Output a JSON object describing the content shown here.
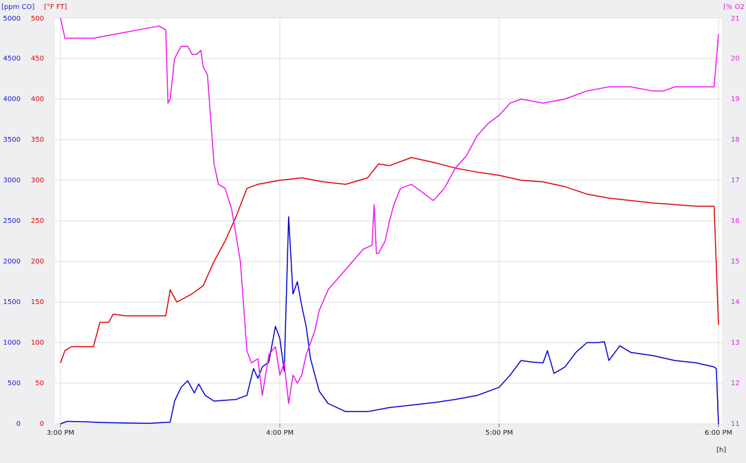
{
  "chart_data": {
    "type": "line",
    "x_unit_label": "[h]",
    "x_ticks": [
      "3:00 PM",
      "4:00 PM",
      "5:00 PM",
      "6:00 PM"
    ],
    "x_range_hours": [
      15,
      18
    ],
    "grid": true,
    "axes": {
      "co": {
        "label": "[ppm CO]",
        "color": "#1a1ad0",
        "side": "left-outer",
        "range": [
          0,
          5000
        ],
        "ticks": [
          "0",
          "500",
          "1000",
          "1500",
          "2000",
          "2500",
          "3000",
          "3500",
          "4000",
          "4500",
          "5000"
        ]
      },
      "temp": {
        "label": "[°F FT]",
        "color": "#dd0000",
        "side": "left-inner",
        "range": [
          0,
          500
        ],
        "ticks": [
          "0",
          "50",
          "100",
          "150",
          "200",
          "250",
          "300",
          "350",
          "400",
          "450",
          "500"
        ]
      },
      "o2": {
        "label": "[% O2",
        "color": "#e020e0",
        "side": "right",
        "range": [
          11,
          21
        ],
        "ticks": [
          "11",
          "12",
          "13",
          "14",
          "15",
          "16",
          "17",
          "18",
          "19",
          "20",
          "21"
        ]
      }
    },
    "series": [
      {
        "axis": "co",
        "color": "#0000cc",
        "x_hours": [
          15.0,
          15.03,
          15.1,
          15.2,
          15.4,
          15.5,
          15.52,
          15.55,
          15.58,
          15.61,
          15.63,
          15.66,
          15.7,
          15.8,
          15.85,
          15.88,
          15.9,
          15.92,
          15.95,
          15.98,
          16.0,
          16.02,
          16.04,
          16.06,
          16.08,
          16.1,
          16.12,
          16.14,
          16.16,
          16.18,
          16.22,
          16.3,
          16.4,
          16.5,
          16.6,
          16.7,
          16.8,
          16.9,
          17.0,
          17.05,
          17.1,
          17.15,
          17.2,
          17.22,
          17.25,
          17.3,
          17.35,
          17.4,
          17.45,
          17.48,
          17.5,
          17.55,
          17.6,
          17.7,
          17.8,
          17.9,
          17.98,
          17.99,
          18.0
        ],
        "y": [
          0,
          30,
          25,
          15,
          5,
          20,
          280,
          450,
          530,
          380,
          490,
          350,
          280,
          300,
          350,
          680,
          560,
          700,
          760,
          1200,
          1050,
          650,
          2550,
          1600,
          1750,
          1450,
          1200,
          800,
          600,
          400,
          250,
          150,
          150,
          200,
          230,
          260,
          300,
          350,
          450,
          600,
          780,
          760,
          750,
          900,
          620,
          700,
          880,
          1000,
          1000,
          1010,
          780,
          960,
          880,
          840,
          780,
          750,
          700,
          680,
          0
        ]
      },
      {
        "axis": "temp",
        "color": "#dd0000",
        "x_hours": [
          15.0,
          15.02,
          15.05,
          15.15,
          15.18,
          15.22,
          15.24,
          15.3,
          15.4,
          15.48,
          15.5,
          15.53,
          15.6,
          15.65,
          15.7,
          15.75,
          15.8,
          15.85,
          15.9,
          16.0,
          16.1,
          16.2,
          16.3,
          16.4,
          16.45,
          16.5,
          16.6,
          16.7,
          16.8,
          16.9,
          17.0,
          17.1,
          17.2,
          17.3,
          17.4,
          17.5,
          17.6,
          17.7,
          17.8,
          17.9,
          17.98,
          18.0
        ],
        "y": [
          75,
          90,
          95,
          95,
          125,
          125,
          135,
          133,
          133,
          133,
          165,
          150,
          160,
          170,
          200,
          225,
          255,
          290,
          295,
          300,
          303,
          298,
          295,
          303,
          320,
          318,
          328,
          322,
          315,
          310,
          306,
          300,
          298,
          292,
          283,
          278,
          275,
          272,
          270,
          268,
          268,
          122
        ]
      },
      {
        "axis": "o2",
        "color": "#ee11ee",
        "x_hours": [
          15.0,
          15.02,
          15.15,
          15.25,
          15.35,
          15.45,
          15.48,
          15.49,
          15.5,
          15.52,
          15.55,
          15.58,
          15.6,
          15.62,
          15.64,
          15.65,
          15.67,
          15.7,
          15.72,
          15.75,
          15.78,
          15.82,
          15.85,
          15.87,
          15.9,
          15.92,
          15.95,
          15.98,
          16.0,
          16.02,
          16.04,
          16.06,
          16.08,
          16.1,
          16.12,
          16.14,
          16.16,
          16.18,
          16.22,
          16.3,
          16.38,
          16.42,
          16.43,
          16.44,
          16.45,
          16.48,
          16.5,
          16.52,
          16.55,
          16.6,
          16.65,
          16.7,
          16.75,
          16.8,
          16.85,
          16.9,
          16.95,
          17.0,
          17.05,
          17.1,
          17.2,
          17.3,
          17.4,
          17.5,
          17.6,
          17.7,
          17.75,
          17.8,
          17.9,
          17.97,
          17.98,
          18.0
        ],
        "y": [
          21.0,
          20.5,
          20.5,
          20.6,
          20.7,
          20.8,
          20.7,
          18.9,
          19.0,
          20.0,
          20.3,
          20.3,
          20.1,
          20.1,
          20.2,
          19.8,
          19.6,
          17.4,
          16.9,
          16.8,
          16.3,
          15.0,
          12.8,
          12.5,
          12.6,
          11.7,
          12.7,
          12.9,
          12.2,
          12.5,
          11.5,
          12.2,
          12.0,
          12.2,
          12.7,
          13.0,
          13.3,
          13.8,
          14.3,
          14.8,
          15.3,
          15.4,
          16.4,
          15.2,
          15.2,
          15.5,
          16.0,
          16.4,
          16.8,
          16.9,
          16.7,
          16.5,
          16.8,
          17.3,
          17.6,
          18.1,
          18.4,
          18.6,
          18.9,
          19.0,
          18.9,
          19.0,
          19.2,
          19.3,
          19.3,
          19.2,
          19.2,
          19.3,
          19.3,
          19.3,
          19.3,
          20.6
        ]
      }
    ]
  }
}
